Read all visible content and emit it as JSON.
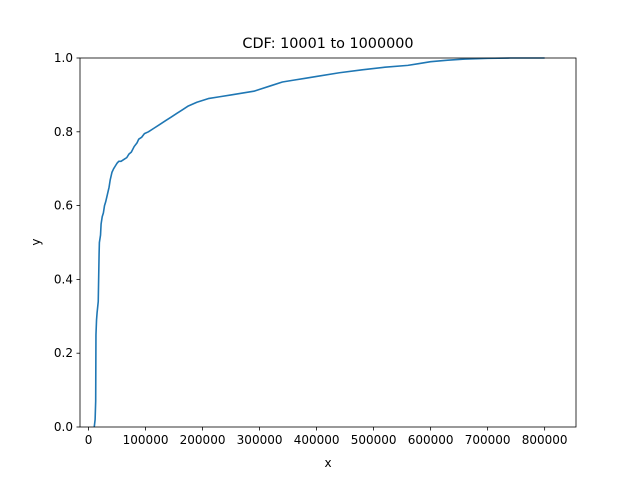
{
  "chart_data": {
    "type": "line",
    "title": "CDF: 10001 to 1000000",
    "xlabel": "x",
    "ylabel": "y",
    "xlim": [
      -15000,
      855000
    ],
    "ylim": [
      0,
      1
    ],
    "x_ticks": [
      0,
      100000,
      200000,
      300000,
      400000,
      500000,
      600000,
      700000,
      800000
    ],
    "x_tick_labels": [
      "0",
      "100000",
      "200000",
      "300000",
      "400000",
      "500000",
      "600000",
      "700000",
      "800000"
    ],
    "y_ticks": [
      0,
      0.2,
      0.4,
      0.6,
      0.8,
      1.0
    ],
    "y_tick_labels": [
      "0.0",
      "0.2",
      "0.4",
      "0.6",
      "0.8",
      "1.0"
    ],
    "grid": false,
    "series": [
      {
        "color": "#1f77b4",
        "x": [
          10001,
          11500,
          12500,
          13000,
          14000,
          15000,
          17000,
          18500,
          19000,
          21000,
          22000,
          24000,
          26000,
          28000,
          30000,
          33000,
          36000,
          38000,
          41000,
          44000,
          46000,
          48000,
          50000,
          53000,
          57000,
          62000,
          67000,
          71000,
          75000,
          80000,
          85000,
          88000,
          93000,
          98000,
          105000,
          115000,
          125000,
          135000,
          145000,
          155000,
          165000,
          175000,
          190000,
          210000,
          230000,
          250000,
          270000,
          290000,
          300000,
          320000,
          340000,
          360000,
          380000,
          400000,
          440000,
          480000,
          520000,
          560000,
          580000,
          600000,
          630000,
          660000,
          700000,
          740000,
          780000,
          800000
        ],
        "y": [
          0.0,
          0.02,
          0.07,
          0.25,
          0.29,
          0.31,
          0.34,
          0.47,
          0.5,
          0.52,
          0.55,
          0.57,
          0.58,
          0.6,
          0.61,
          0.63,
          0.65,
          0.67,
          0.69,
          0.7,
          0.705,
          0.71,
          0.715,
          0.72,
          0.72,
          0.725,
          0.73,
          0.74,
          0.745,
          0.76,
          0.77,
          0.78,
          0.785,
          0.795,
          0.8,
          0.81,
          0.82,
          0.83,
          0.84,
          0.85,
          0.86,
          0.87,
          0.88,
          0.89,
          0.895,
          0.9,
          0.905,
          0.91,
          0.915,
          0.925,
          0.935,
          0.94,
          0.945,
          0.95,
          0.96,
          0.968,
          0.975,
          0.98,
          0.985,
          0.99,
          0.994,
          0.997,
          0.999,
          1.0,
          1.0,
          1.0
        ]
      }
    ]
  }
}
